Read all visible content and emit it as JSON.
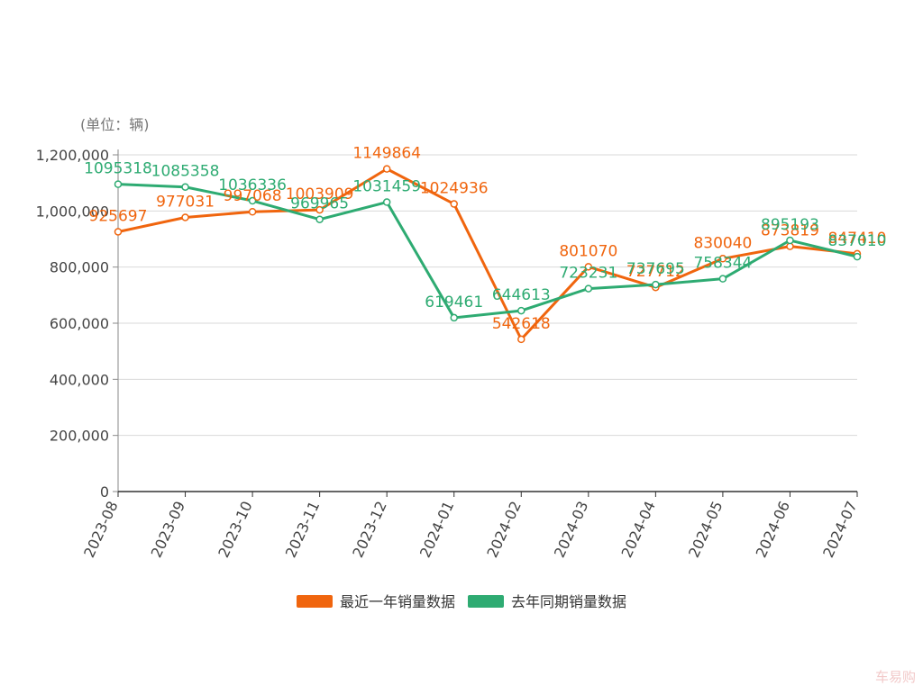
{
  "watermark": "车易购",
  "chart_data": {
    "type": "line",
    "unit_label": "(单位：辆)",
    "title": "",
    "xlabel": "",
    "ylabel": "",
    "categories": [
      "2023-08",
      "2023-09",
      "2023-10",
      "2023-11",
      "2023-12",
      "2024-01",
      "2024-02",
      "2024-03",
      "2024-04",
      "2024-05",
      "2024-06",
      "2024-07"
    ],
    "y_ticks": [
      "0",
      "200,000",
      "400,000",
      "600,000",
      "800,000",
      "1,000,000",
      "1,200,000"
    ],
    "ylim": [
      0,
      1200000
    ],
    "grid": true,
    "legend_position": "bottom",
    "series": [
      {
        "name": "最近一年销量数据",
        "color": "#f0650e",
        "values": [
          925697,
          977031,
          997068,
          1003909,
          1149864,
          1024936,
          542618,
          801070,
          727712,
          830040,
          873819,
          847410
        ]
      },
      {
        "name": "去年同期销量数据",
        "color": "#2eab72",
        "values": [
          1095318,
          1085358,
          1036336,
          969965,
          1031459,
          619461,
          644613,
          723231,
          737695,
          758344,
          895193,
          837010
        ]
      }
    ]
  }
}
